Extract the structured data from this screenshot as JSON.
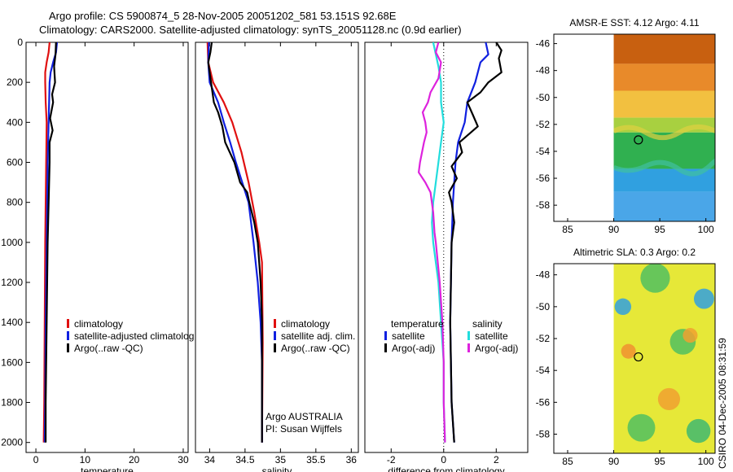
{
  "header": {
    "line1": "Argo profile: CS 5900874_5 28-Nov-2005 20051202_581 53.151S 92.68E",
    "line2": "Climatology: CARS2000. Satellite-adjusted climatology: synTS_20051128.nc (0.9d earlier)"
  },
  "side_label": "CSIRO 04-Dec-2005 08:31:59",
  "colors": {
    "red": "#e01010",
    "blue": "#1020e0",
    "black": "#000000",
    "cyan": "#22dddd",
    "magenta": "#dd22dd"
  },
  "chart_data": [
    {
      "type": "line",
      "name": "temperature-panel",
      "xlabel": "temperature",
      "ylabel": "",
      "xlim": [
        -2,
        31
      ],
      "ylim": [
        2050,
        0
      ],
      "xticks": [
        0,
        10,
        20,
        30
      ],
      "yticks": [
        0,
        200,
        400,
        600,
        800,
        1000,
        1200,
        1400,
        1600,
        1800,
        2000
      ],
      "series": [
        {
          "name": "climatology",
          "color": "red",
          "points": [
            [
              2.8,
              0
            ],
            [
              2.6,
              50
            ],
            [
              2.2,
              100
            ],
            [
              1.9,
              150
            ],
            [
              1.9,
              200
            ],
            [
              2.0,
              300
            ],
            [
              2.2,
              400
            ],
            [
              2.1,
              600
            ],
            [
              2.0,
              800
            ],
            [
              1.9,
              1000
            ],
            [
              1.8,
              1400
            ],
            [
              1.7,
              1800
            ],
            [
              1.6,
              2000
            ]
          ]
        },
        {
          "name": "satellite-adjusted climatology",
          "color": "blue",
          "points": [
            [
              4.3,
              0
            ],
            [
              4.1,
              50
            ],
            [
              3.5,
              100
            ],
            [
              3.0,
              150
            ],
            [
              2.8,
              200
            ],
            [
              2.7,
              300
            ],
            [
              2.6,
              400
            ],
            [
              2.4,
              600
            ],
            [
              2.3,
              800
            ],
            [
              2.2,
              1000
            ],
            [
              2.0,
              1400
            ],
            [
              1.9,
              1800
            ],
            [
              1.8,
              2000
            ]
          ]
        },
        {
          "name": "Argo(..raw -QC)",
          "color": "black",
          "points": [
            [
              4.1,
              0
            ],
            [
              4.0,
              60
            ],
            [
              3.7,
              120
            ],
            [
              3.9,
              200
            ],
            [
              3.3,
              260
            ],
            [
              3.5,
              300
            ],
            [
              2.9,
              380
            ],
            [
              3.4,
              440
            ],
            [
              2.8,
              500
            ],
            [
              2.8,
              600
            ],
            [
              2.7,
              700
            ],
            [
              2.6,
              800
            ],
            [
              2.4,
              1000
            ],
            [
              2.2,
              1400
            ],
            [
              2.0,
              1800
            ],
            [
              2.0,
              2000
            ]
          ]
        }
      ],
      "legend": {
        "entries": [
          {
            "label": "climatology",
            "color": "red"
          },
          {
            "label": "satellite-adjusted climatolog",
            "color": "blue"
          },
          {
            "label": "Argo(..raw -QC)",
            "color": "black"
          }
        ]
      }
    },
    {
      "type": "line",
      "name": "salinity-panel",
      "xlabel": "salinity",
      "ylabel": "",
      "xlim": [
        33.8,
        36.1
      ],
      "ylim": [
        2050,
        0
      ],
      "xticks": [
        34,
        34.5,
        35,
        35.5,
        36
      ],
      "yticks": [],
      "series": [
        {
          "name": "climatology",
          "color": "red",
          "points": [
            [
              33.97,
              0
            ],
            [
              33.98,
              100
            ],
            [
              34.05,
              200
            ],
            [
              34.2,
              300
            ],
            [
              34.32,
              400
            ],
            [
              34.45,
              550
            ],
            [
              34.55,
              700
            ],
            [
              34.63,
              850
            ],
            [
              34.7,
              1000
            ],
            [
              34.74,
              1100
            ],
            [
              34.75,
              1500
            ],
            [
              34.74,
              2000
            ]
          ]
        },
        {
          "name": "satellite adj. clim.",
          "color": "blue",
          "points": [
            [
              33.99,
              0
            ],
            [
              33.98,
              100
            ],
            [
              34.0,
              200
            ],
            [
              34.12,
              300
            ],
            [
              34.2,
              400
            ],
            [
              34.29,
              500
            ],
            [
              34.37,
              600
            ],
            [
              34.46,
              700
            ],
            [
              34.55,
              800
            ],
            [
              34.62,
              1000
            ],
            [
              34.68,
              1200
            ],
            [
              34.72,
              1400
            ],
            [
              34.74,
              1600
            ],
            [
              34.74,
              2000
            ]
          ]
        },
        {
          "name": "Argo(..raw -QC)",
          "color": "black",
          "points": [
            [
              34.03,
              0
            ],
            [
              34.01,
              50
            ],
            [
              33.98,
              100
            ],
            [
              34.02,
              200
            ],
            [
              34.06,
              300
            ],
            [
              34.12,
              350
            ],
            [
              34.18,
              420
            ],
            [
              34.22,
              500
            ],
            [
              34.35,
              600
            ],
            [
              34.39,
              650
            ],
            [
              34.43,
              700
            ],
            [
              34.53,
              750
            ],
            [
              34.56,
              800
            ],
            [
              34.63,
              900
            ],
            [
              34.68,
              1000
            ],
            [
              34.72,
              1200
            ],
            [
              34.74,
              1400
            ],
            [
              34.74,
              2000
            ]
          ]
        }
      ],
      "legend": {
        "entries": [
          {
            "label": "climatology",
            "color": "red"
          },
          {
            "label": "satellite adj. clim.",
            "color": "blue"
          },
          {
            "label": "Argo(..raw -QC)",
            "color": "black"
          }
        ]
      },
      "annotations": [
        "Argo AUSTRALIA",
        "PI: Susan Wijffels"
      ]
    },
    {
      "type": "line",
      "name": "difference-panel",
      "xlabel": "difference from climatology",
      "ylabel": "",
      "xlim": [
        -3,
        3.2
      ],
      "ylim": [
        2050,
        0
      ],
      "xticks": [
        -2,
        0,
        2
      ],
      "yticks": [],
      "reference_line": 0,
      "series": [
        {
          "name": "temperature satellite",
          "color": "blue",
          "points": [
            [
              1.6,
              0
            ],
            [
              1.7,
              60
            ],
            [
              1.4,
              100
            ],
            [
              1.3,
              150
            ],
            [
              1.2,
              200
            ],
            [
              0.9,
              300
            ],
            [
              0.8,
              400
            ],
            [
              0.55,
              500
            ],
            [
              0.45,
              600
            ],
            [
              0.35,
              800
            ],
            [
              0.3,
              1000
            ],
            [
              0.25,
              1400
            ],
            [
              0.3,
              1800
            ],
            [
              0.4,
              2000
            ]
          ]
        },
        {
          "name": "temperature Argo(-adj)",
          "color": "black",
          "points": [
            [
              2.0,
              0
            ],
            [
              2.2,
              40
            ],
            [
              2.1,
              80
            ],
            [
              2.2,
              150
            ],
            [
              1.7,
              200
            ],
            [
              1.4,
              250
            ],
            [
              0.9,
              300
            ],
            [
              1.1,
              360
            ],
            [
              1.3,
              420
            ],
            [
              0.6,
              500
            ],
            [
              0.7,
              550
            ],
            [
              0.3,
              620
            ],
            [
              0.5,
              680
            ],
            [
              0.2,
              750
            ],
            [
              0.3,
              800
            ],
            [
              0.4,
              900
            ],
            [
              0.3,
              1000
            ],
            [
              0.25,
              1400
            ],
            [
              0.3,
              1800
            ],
            [
              0.4,
              2000
            ]
          ]
        },
        {
          "name": "salinity satellite",
          "color": "cyan",
          "points": [
            [
              -0.4,
              0
            ],
            [
              -0.3,
              60
            ],
            [
              -0.2,
              120
            ],
            [
              -0.1,
              200
            ],
            [
              -0.1,
              300
            ],
            [
              0.0,
              400
            ],
            [
              -0.1,
              500
            ],
            [
              -0.2,
              600
            ],
            [
              -0.3,
              700
            ],
            [
              -0.4,
              800
            ],
            [
              -0.45,
              900
            ],
            [
              -0.4,
              1000
            ],
            [
              -0.2,
              1200
            ],
            [
              -0.1,
              1400
            ],
            [
              0.0,
              1600
            ],
            [
              0.0,
              1800
            ],
            [
              0.05,
              2000
            ]
          ]
        },
        {
          "name": "salinity Argo(-adj)",
          "color": "magenta",
          "points": [
            [
              -0.2,
              0
            ],
            [
              -0.3,
              50
            ],
            [
              -0.1,
              100
            ],
            [
              -0.2,
              180
            ],
            [
              -0.5,
              250
            ],
            [
              -0.6,
              300
            ],
            [
              -0.8,
              350
            ],
            [
              -0.7,
              400
            ],
            [
              -0.65,
              450
            ],
            [
              -0.75,
              500
            ],
            [
              -0.9,
              600
            ],
            [
              -0.95,
              650
            ],
            [
              -0.7,
              700
            ],
            [
              -0.5,
              750
            ],
            [
              -0.4,
              850
            ],
            [
              -0.35,
              950
            ],
            [
              -0.3,
              1000
            ],
            [
              -0.15,
              1200
            ],
            [
              -0.05,
              1400
            ],
            [
              0.0,
              1600
            ],
            [
              0.0,
              1800
            ],
            [
              0.05,
              2000
            ]
          ]
        }
      ],
      "legend": {
        "groups": [
          {
            "title": "temperature",
            "entries": [
              {
                "label": "satellite",
                "color": "blue"
              },
              {
                "label": "Argo(-adj)",
                "color": "black"
              }
            ]
          },
          {
            "title": "salinity",
            "entries": [
              {
                "label": "satellite",
                "color": "cyan"
              },
              {
                "label": "Argo(-adj)",
                "color": "magenta"
              }
            ]
          }
        ]
      }
    },
    {
      "type": "heatmap",
      "name": "sst-map",
      "title": "AMSR-E SST: 4.12 Argo: 4.11",
      "xlim": [
        83.5,
        101
      ],
      "ylim": [
        -59.2,
        -45.3
      ],
      "xticks": [
        85,
        90,
        95,
        100
      ],
      "yticks": [
        -46,
        -48,
        -50,
        -52,
        -54,
        -56,
        -58
      ],
      "data_extent_x": [
        90,
        101
      ],
      "float_position": [
        92.68,
        -53.15
      ],
      "bands": [
        {
          "from": -45.3,
          "to": -47.5,
          "color": "#c86010"
        },
        {
          "from": -47.5,
          "to": -49.5,
          "color": "#e88a2a"
        },
        {
          "from": -49.5,
          "to": -51.5,
          "color": "#f2c040"
        },
        {
          "from": -51.5,
          "to": -52.6,
          "color": "#a8d040"
        },
        {
          "from": -52.6,
          "to": -55.3,
          "color": "#30b050"
        },
        {
          "from": -55.3,
          "to": -57.0,
          "color": "#30a0e0"
        },
        {
          "from": -57.0,
          "to": -59.2,
          "color": "#4aa6e8"
        }
      ]
    },
    {
      "type": "heatmap",
      "name": "sla-map",
      "title": "Altimetric SLA: 0.3 Argo: 0.2",
      "xlim": [
        83.5,
        101
      ],
      "ylim": [
        -59.2,
        -47.3
      ],
      "xticks": [
        85,
        90,
        95,
        100
      ],
      "yticks": [
        -48,
        -50,
        -52,
        -54,
        -56,
        -58
      ],
      "data_extent_x": [
        90,
        101
      ],
      "float_position": [
        92.68,
        -53.15
      ],
      "base_color": "#e6e838",
      "blobs": [
        {
          "x": 91.0,
          "y": -50.0,
          "r": 0.9,
          "color": "#30a0e0"
        },
        {
          "x": 99.8,
          "y": -49.5,
          "r": 1.1,
          "color": "#30a0e0"
        },
        {
          "x": 94.5,
          "y": -48.2,
          "r": 1.6,
          "color": "#50c060"
        },
        {
          "x": 97.5,
          "y": -52.2,
          "r": 1.4,
          "color": "#50c060"
        },
        {
          "x": 91.6,
          "y": -52.8,
          "r": 0.8,
          "color": "#f09030"
        },
        {
          "x": 98.3,
          "y": -51.8,
          "r": 0.8,
          "color": "#f0a030"
        },
        {
          "x": 96.0,
          "y": -55.8,
          "r": 1.2,
          "color": "#f0a030"
        },
        {
          "x": 93.0,
          "y": -57.6,
          "r": 1.5,
          "color": "#50c060"
        },
        {
          "x": 99.2,
          "y": -57.8,
          "r": 1.3,
          "color": "#40b870"
        }
      ]
    }
  ]
}
